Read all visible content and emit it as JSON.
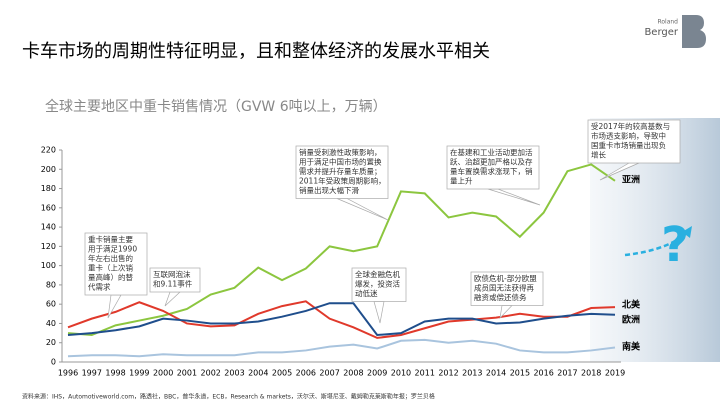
{
  "chart_data": {
    "type": "line",
    "title": "卡车市场的周期性特征明显，且和整体经济的发展水平相关",
    "subtitle": "全球主要地区中重卡销售情况（GVW 6吨以上，万辆）",
    "logo": [
      "Roland",
      "Berger"
    ],
    "categories": [
      "1996",
      "1997",
      "1998",
      "1999",
      "2000",
      "2001",
      "2002",
      "2003",
      "2004",
      "2005",
      "2006",
      "2007",
      "2008",
      "2009",
      "2010",
      "2011",
      "2012",
      "2013",
      "2014",
      "2015",
      "2016",
      "2017",
      "2018",
      "2019"
    ],
    "ylim": [
      0,
      220
    ],
    "yticks": [
      0,
      20,
      40,
      60,
      80,
      100,
      120,
      140,
      160,
      180,
      200,
      220
    ],
    "series": [
      {
        "name": "亚洲",
        "color": "#8cc63f",
        "values": [
          30,
          28,
          38,
          43,
          48,
          55,
          70,
          77,
          98,
          85,
          97,
          120,
          115,
          120,
          177,
          175,
          150,
          155,
          151,
          130,
          155,
          198,
          205,
          188
        ]
      },
      {
        "name": "北美",
        "color": "#e0392b",
        "values": [
          36,
          45,
          52,
          62,
          53,
          40,
          37,
          38,
          50,
          58,
          63,
          45,
          36,
          25,
          28,
          35,
          42,
          44,
          46,
          50,
          47,
          47,
          56,
          57
        ]
      },
      {
        "name": "欧洲",
        "color": "#1f4e8c",
        "values": [
          28,
          30,
          33,
          37,
          45,
          43,
          40,
          40,
          42,
          47,
          53,
          61,
          61,
          28,
          30,
          42,
          45,
          45,
          40,
          41,
          45,
          48,
          50,
          49
        ]
      },
      {
        "name": "南美",
        "color": "#a9c4de",
        "values": [
          6,
          7,
          7,
          6,
          8,
          7,
          7,
          7,
          10,
          10,
          12,
          16,
          18,
          14,
          22,
          23,
          20,
          22,
          19,
          12,
          10,
          10,
          12,
          15
        ]
      }
    ],
    "annotations": [
      [
        "重卡销量主要",
        "用于满足1990",
        "年左右出售的",
        "重卡（上次销",
        "量高峰）的替",
        "代需求"
      ],
      [
        "互联网泡沫",
        "和9.11事件"
      ],
      [
        "销量受刺激性政策影响，",
        "用于满足中国市场的置换",
        "需求并提升存量车质量；",
        "2011年受政策周期影响，",
        "销量出现大幅下滑"
      ],
      [
        "全球金融危机",
        "爆发，投资活",
        "动低迷"
      ],
      [
        "在基建和工业活动更加活",
        "跃、治超更加严格以及存",
        "量车置换需求涨现下，销",
        "量上升"
      ],
      [
        "欧债危机-部分欧盟",
        "成员国无法获得再",
        "融资或偿还债务"
      ],
      [
        "受2017年的较高基数与",
        "市场透支影响，导致中",
        "国重卡市场销量出现负",
        "增长"
      ]
    ],
    "question": "?",
    "source": "资料来源：IHS，Automotiveworld.com，路透社，BBC，普华永道，ECB，Research & markets，沃尔沃、斯堪尼亚、戴姆勒克莱斯勒年报；罗兰贝格"
  }
}
